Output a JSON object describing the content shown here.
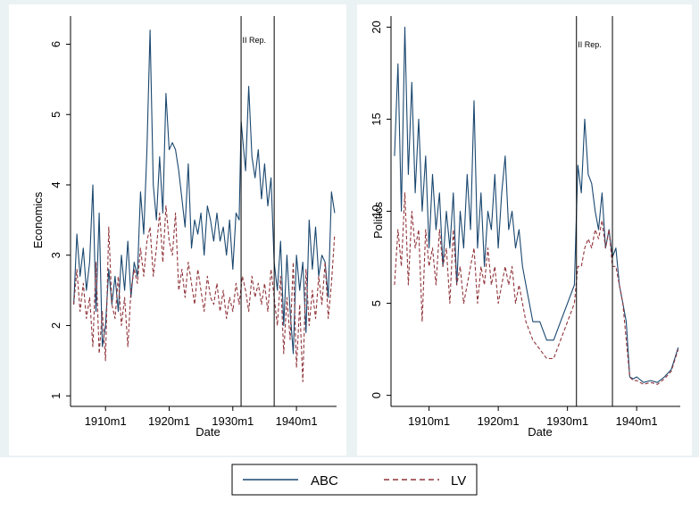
{
  "colors": {
    "abc": "#1a476f",
    "lv": "#90353b",
    "panel_bg": "#ffffff",
    "outer_bg": "#eaf2f3"
  },
  "legend": {
    "placement": "bottom-center",
    "entries": [
      {
        "key": "abc",
        "label": "ABC",
        "style": "solid"
      },
      {
        "key": "lv",
        "label": "LV",
        "style": "dashed"
      }
    ]
  },
  "chart_data": [
    {
      "type": "line",
      "xlabel": "Date",
      "ylabel": "Economics",
      "xlim": [
        1904.5,
        1946.3
      ],
      "ylim": [
        0.85,
        6.4
      ],
      "yticks": [
        1,
        2,
        3,
        4,
        5,
        6
      ],
      "xticks": [
        {
          "value": 1910,
          "label": "1910m1"
        },
        {
          "value": 1920,
          "label": "1920m1"
        },
        {
          "value": 1930,
          "label": "1930m1"
        },
        {
          "value": 1940,
          "label": "1940m1"
        }
      ],
      "vlines": [
        1931.3,
        1936.5
      ],
      "annotation": {
        "text": "II Rep.",
        "x": 1931.5,
        "y": 6.02
      },
      "series": [
        {
          "key": "abc",
          "x": [
            1905,
            1905.5,
            1906,
            1906.5,
            1907,
            1907.5,
            1908,
            1908.5,
            1909,
            1909.5,
            1910,
            1910.5,
            1911,
            1911.5,
            1912,
            1912.5,
            1913,
            1913.5,
            1914,
            1914.5,
            1915,
            1915.5,
            1916,
            1916.5,
            1917,
            1917.5,
            1918,
            1918.5,
            1919,
            1919.5,
            1920,
            1920.5,
            1921,
            1921.5,
            1922,
            1922.5,
            1923,
            1923.5,
            1924,
            1924.5,
            1925,
            1925.5,
            1926,
            1926.5,
            1927,
            1927.5,
            1928,
            1928.5,
            1929,
            1929.5,
            1930,
            1930.5,
            1931,
            1931.3,
            1931.5,
            1932,
            1932.5,
            1933,
            1933.5,
            1934,
            1934.5,
            1935,
            1935.5,
            1936,
            1936.5,
            1937,
            1937.5,
            1938,
            1938.5,
            1939,
            1939.5,
            1940,
            1940.5,
            1941,
            1941.5,
            1942,
            1942.5,
            1943,
            1943.5,
            1944,
            1944.5,
            1945,
            1945.5,
            1946
          ],
          "values": [
            2.3,
            3.3,
            2.7,
            3.1,
            2.5,
            2.9,
            4.0,
            2.2,
            3.6,
            1.7,
            2.0,
            2.8,
            2.3,
            2.7,
            2.2,
            3.0,
            2.5,
            3.2,
            2.4,
            2.9,
            2.7,
            3.9,
            3.3,
            4.5,
            6.2,
            4.0,
            3.5,
            4.4,
            3.6,
            5.3,
            4.5,
            4.6,
            4.5,
            4.2,
            3.8,
            3.4,
            4.3,
            3.1,
            3.5,
            3.3,
            3.6,
            3.0,
            3.7,
            3.5,
            3.2,
            3.6,
            3.2,
            3.4,
            3.0,
            3.5,
            2.8,
            3.6,
            3.5,
            4.9,
            4.7,
            4.2,
            5.4,
            4.4,
            4.1,
            4.5,
            3.8,
            4.3,
            3.7,
            4.1,
            2.9,
            2.5,
            3.2,
            2.0,
            3.0,
            2.2,
            1.6,
            3.0,
            2.5,
            2.9,
            1.9,
            3.5,
            2.8,
            3.4,
            2.7,
            3.0,
            2.9,
            2.4,
            3.9,
            3.6
          ]
        },
        {
          "key": "lv",
          "x": [
            1905,
            1905.5,
            1906,
            1906.5,
            1907,
            1907.5,
            1908,
            1908.5,
            1909,
            1909.5,
            1910,
            1910.5,
            1911,
            1911.5,
            1912,
            1912.5,
            1913,
            1913.5,
            1914,
            1914.5,
            1915,
            1915.5,
            1916,
            1916.5,
            1917,
            1917.5,
            1918,
            1918.5,
            1919,
            1919.5,
            1920,
            1920.5,
            1921,
            1921.5,
            1922,
            1922.5,
            1923,
            1923.5,
            1924,
            1924.5,
            1925,
            1925.5,
            1926,
            1926.5,
            1927,
            1927.5,
            1928,
            1928.5,
            1929,
            1929.5,
            1930,
            1930.5,
            1931,
            1931.5,
            1932,
            1932.5,
            1933,
            1933.5,
            1934,
            1934.5,
            1935,
            1935.5,
            1936,
            1936.5,
            1937,
            1937.5,
            1938,
            1938.5,
            1939,
            1939.5,
            1940,
            1940.5,
            1941,
            1941.5,
            1942,
            1942.5,
            1943,
            1943.5,
            1944,
            1944.5,
            1945,
            1945.5,
            1946
          ],
          "values": [
            2.3,
            2.8,
            2.2,
            2.6,
            2.1,
            2.4,
            1.7,
            2.9,
            1.6,
            2.2,
            1.5,
            3.4,
            2.3,
            2.1,
            2.7,
            2.0,
            2.4,
            1.7,
            2.5,
            2.8,
            2.6,
            3.1,
            2.7,
            3.2,
            3.4,
            2.7,
            3.1,
            3.6,
            2.9,
            3.7,
            3.2,
            3.0,
            3.6,
            2.5,
            2.8,
            2.4,
            2.9,
            2.6,
            2.3,
            2.8,
            2.5,
            2.2,
            2.7,
            2.4,
            2.3,
            2.6,
            2.2,
            2.5,
            2.1,
            2.4,
            2.2,
            2.6,
            2.3,
            2.7,
            2.5,
            2.2,
            2.7,
            2.4,
            2.6,
            2.3,
            2.6,
            2.2,
            2.8,
            2.4,
            2.0,
            2.7,
            1.6,
            2.4,
            1.8,
            2.9,
            1.4,
            2.3,
            1.2,
            2.8,
            2.0,
            2.5,
            2.1,
            2.7,
            2.3,
            2.9,
            2.1,
            2.6,
            3.3
          ]
        }
      ]
    },
    {
      "type": "line",
      "xlabel": "Date",
      "ylabel": "Politics",
      "xlim": [
        1904.5,
        1946.3
      ],
      "ylim": [
        -0.6,
        20.6
      ],
      "yticks": [
        0,
        5,
        10,
        15,
        20
      ],
      "xticks": [
        {
          "value": 1910,
          "label": "1910m1"
        },
        {
          "value": 1920,
          "label": "1920m1"
        },
        {
          "value": 1930,
          "label": "1930m1"
        },
        {
          "value": 1940,
          "label": "1940m1"
        }
      ],
      "vlines": [
        1931.3,
        1936.5
      ],
      "annotation": {
        "text": "II Rep.",
        "x": 1931.5,
        "y": 18.9
      },
      "series": [
        {
          "key": "abc",
          "x": [
            1905,
            1905.5,
            1906,
            1906.5,
            1907,
            1907.5,
            1908,
            1908.5,
            1909,
            1909.5,
            1910,
            1910.5,
            1911,
            1911.5,
            1912,
            1912.5,
            1913,
            1913.5,
            1914,
            1914.5,
            1915,
            1915.5,
            1916,
            1916.5,
            1917,
            1917.5,
            1918,
            1918.5,
            1919,
            1919.5,
            1920,
            1920.5,
            1921,
            1921.5,
            1922,
            1922.5,
            1923,
            1923.5,
            1924,
            1925,
            1926,
            1927,
            1928,
            1929,
            1930,
            1931,
            1931.5,
            1932,
            1932.5,
            1933,
            1933.5,
            1934,
            1934.5,
            1935,
            1935.5,
            1936,
            1936.5,
            1937,
            1937.5,
            1938,
            1938.5,
            1939,
            1939.5,
            1940,
            1941,
            1942,
            1943,
            1944,
            1945,
            1946
          ],
          "values": [
            13,
            18,
            10,
            20,
            12,
            17,
            11,
            15,
            10,
            13,
            8,
            12,
            9,
            11,
            7,
            10,
            8,
            11,
            6,
            10,
            8,
            12,
            9,
            16,
            8,
            11,
            7,
            10,
            9,
            12,
            8,
            11,
            13,
            9,
            10,
            8,
            9,
            7,
            6,
            4,
            4,
            3,
            3,
            4,
            5,
            6,
            12.5,
            11,
            15,
            12,
            11.5,
            10,
            9,
            11,
            8,
            9,
            7.5,
            8,
            6,
            5,
            4,
            1,
            0.9,
            1,
            0.7,
            0.8,
            0.7,
            1.0,
            1.4,
            2.6
          ]
        },
        {
          "key": "lv",
          "x": [
            1905,
            1905.5,
            1906,
            1906.5,
            1907,
            1907.5,
            1908,
            1908.5,
            1909,
            1909.5,
            1910,
            1910.5,
            1911,
            1911.5,
            1912,
            1912.5,
            1913,
            1913.5,
            1914,
            1914.5,
            1915,
            1915.5,
            1916,
            1916.5,
            1917,
            1917.5,
            1918,
            1918.5,
            1919,
            1919.5,
            1920,
            1920.5,
            1921,
            1921.5,
            1922,
            1922.5,
            1923,
            1923.5,
            1924,
            1925,
            1926,
            1927,
            1928,
            1929,
            1930,
            1931,
            1931.5,
            1932,
            1932.5,
            1933,
            1933.5,
            1934,
            1934.5,
            1935,
            1935.5,
            1936,
            1936.5,
            1937,
            1937.5,
            1938,
            1938.5,
            1939,
            1939.5,
            1940,
            1941,
            1942,
            1943,
            1944,
            1945,
            1946
          ],
          "values": [
            6,
            9,
            7,
            11,
            6,
            10,
            8,
            9,
            4,
            9,
            7,
            8,
            6,
            9,
            7,
            8,
            5,
            9,
            6,
            7,
            5,
            6,
            7,
            8,
            5,
            7,
            6,
            8,
            6,
            7,
            5,
            6,
            7,
            6,
            7,
            5,
            6,
            5,
            4,
            3,
            2.5,
            2,
            2,
            3,
            4,
            5,
            7,
            7,
            8,
            8.5,
            8,
            9,
            8.5,
            9.5,
            8,
            9,
            7,
            7,
            6,
            5,
            3,
            1,
            0.8,
            0.8,
            0.6,
            0.7,
            0.6,
            0.9,
            1.3,
            2.5
          ]
        }
      ]
    }
  ]
}
